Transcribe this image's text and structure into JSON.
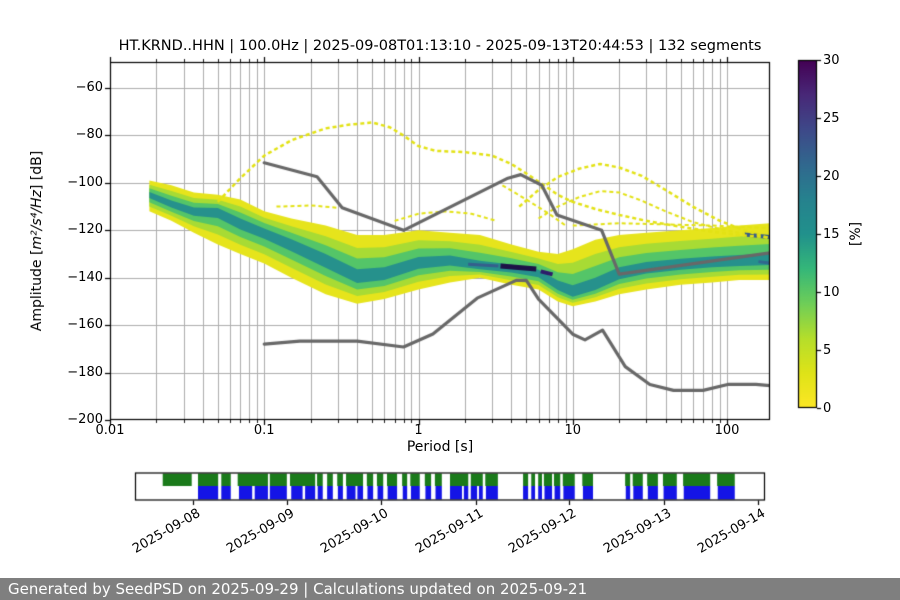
{
  "meta": {
    "station": "HT.KRND..HHN",
    "sampling_rate": "100.0Hz",
    "time_range": "2025-09-08T01:13:10 - 2025-09-13T20:44:53",
    "segments": "132 segments"
  },
  "ylabel": {
    "prefix": "Amplitude [",
    "math": "m²/s⁴/Hz",
    "suffix": "] [dB]"
  },
  "footer": {
    "text": "Generated by SeedPSD on 2025-09-29 | Calculations updated on 2025-09-21"
  },
  "chart_data": {
    "type": "heatmap",
    "title": "HT.KRND..HHN | 100.0Hz | 2025-09-08T01:13:10 - 2025-09-13T20:44:53 | 132 segments",
    "xlabel": "Period [s]",
    "ylabel": "Amplitude [m2/s4/Hz] [dB]",
    "xscale": "log",
    "xlim": [
      0.01,
      190
    ],
    "ylim": [
      -200,
      -49
    ],
    "grid": true,
    "grid_color": "#adadad",
    "xticks": [
      0.01,
      0.1,
      1,
      10,
      100
    ],
    "xtick_labels": [
      "0.01",
      "0.1",
      "1",
      "10",
      "100"
    ],
    "yticks": [
      -200,
      -180,
      -160,
      -140,
      -120,
      -100,
      -80,
      -60
    ],
    "ytick_labels": [
      "−200",
      "−180",
      "−160",
      "−140",
      "−120",
      "−100",
      "−80",
      "−60"
    ],
    "colorbar": {
      "label": "[%]",
      "ticks": [
        0,
        5,
        10,
        15,
        20,
        25,
        30
      ],
      "tick_labels": [
        "0",
        "5",
        "10",
        "15",
        "20",
        "25",
        "30"
      ],
      "cmap": "viridis_r",
      "stops_bottom_to_top": [
        "#fde725",
        "#dfe318",
        "#b5de2b",
        "#6ece58",
        "#35b779",
        "#21918c",
        "#26828e",
        "#31688e",
        "#3e4989",
        "#482878",
        "#440154"
      ]
    },
    "noise_models": {
      "color": "#686868",
      "nhnm": [
        [
          0.1,
          -91.5
        ],
        [
          0.22,
          -97.4
        ],
        [
          0.32,
          -110.5
        ],
        [
          0.8,
          -120.0
        ],
        [
          3.8,
          -98.0
        ],
        [
          4.6,
          -96.5
        ],
        [
          6.3,
          -101.0
        ],
        [
          7.9,
          -113.5
        ],
        [
          15.4,
          -120.0
        ],
        [
          20.0,
          -138.5
        ],
        [
          190,
          -129.5
        ]
      ],
      "nlnm": [
        [
          0.1,
          -168.0
        ],
        [
          0.17,
          -166.7
        ],
        [
          0.4,
          -166.7
        ],
        [
          0.8,
          -169.2
        ],
        [
          1.24,
          -163.7
        ],
        [
          2.4,
          -148.6
        ],
        [
          4.3,
          -141.1
        ],
        [
          5.0,
          -141.1
        ],
        [
          6.0,
          -149.0
        ],
        [
          10.0,
          -163.8
        ],
        [
          12.0,
          -166.2
        ],
        [
          15.6,
          -162.1
        ],
        [
          21.9,
          -177.5
        ],
        [
          31.6,
          -185.0
        ],
        [
          45.0,
          -187.5
        ],
        [
          70.0,
          -187.5
        ],
        [
          101.0,
          -185.0
        ],
        [
          154.0,
          -185.0
        ],
        [
          190,
          -185.5
        ]
      ]
    },
    "psd_band": {
      "layer_colors": [
        "#e6e41c",
        "#a8db34",
        "#54c568",
        "#26918c"
      ],
      "layer_shrink": [
        1.0,
        0.7,
        0.45,
        0.2
      ],
      "periods": [
        0.018,
        0.025,
        0.035,
        0.05,
        0.07,
        0.1,
        0.15,
        0.25,
        0.4,
        0.6,
        1.0,
        1.6,
        2.5,
        4,
        6,
        8,
        10,
        14,
        20,
        30,
        50,
        80,
        120,
        190
      ],
      "top": [
        -99,
        -101,
        -104,
        -105,
        -107,
        -112,
        -115,
        -118,
        -122,
        -122,
        -120,
        -121,
        -122,
        -126,
        -129,
        -130,
        -128,
        -124,
        -122,
        -121,
        -120,
        -119,
        -118,
        -117
      ],
      "bottom": [
        -112,
        -116,
        -121,
        -126,
        -130,
        -134,
        -140,
        -147,
        -151,
        -149,
        -145,
        -142,
        -140,
        -143,
        -145,
        -150,
        -152,
        -150,
        -147,
        -145,
        -143,
        -142,
        -141,
        -141
      ],
      "core": [
        -105,
        -109,
        -112,
        -112,
        -117,
        -121,
        -126,
        -133,
        -140,
        -139,
        -134,
        -133,
        -135.5,
        -136.5,
        -138.5,
        -144,
        -147,
        -144,
        -139,
        -136.5,
        -135,
        -134,
        -133.5,
        -133
      ]
    },
    "dark_segments": [
      {
        "color": "#355f8d",
        "width": 3,
        "points": [
          [
            2.1,
            -134.3
          ],
          [
            3.3,
            -135
          ]
        ]
      },
      {
        "color": "#1d1147",
        "width": 5,
        "points": [
          [
            3.4,
            -135
          ],
          [
            5.8,
            -136.3
          ]
        ]
      },
      {
        "color": "#2d1c6b",
        "width": 4,
        "points": [
          [
            6.2,
            -137.3
          ],
          [
            7.4,
            -138.6
          ]
        ]
      },
      {
        "color": "#365c8d",
        "width": 4,
        "points": [
          [
            130,
            -121.8
          ],
          [
            188,
            -122.8
          ]
        ]
      },
      {
        "color": "#31688e",
        "width": 3,
        "points": [
          [
            160,
            -133.2
          ],
          [
            188,
            -133.8
          ]
        ]
      }
    ],
    "outlier_lines": [
      {
        "color": "#e3e214",
        "width": 2.5,
        "points": [
          [
            0.05,
            -108
          ],
          [
            0.07,
            -98
          ],
          [
            0.1,
            -88.5
          ],
          [
            0.15,
            -82
          ],
          [
            0.25,
            -77
          ],
          [
            0.35,
            -75.5
          ],
          [
            0.5,
            -74.5
          ],
          [
            0.65,
            -76.5
          ],
          [
            0.8,
            -80
          ],
          [
            1.0,
            -84.5
          ],
          [
            1.3,
            -86.5
          ],
          [
            2.0,
            -87
          ],
          [
            3.0,
            -88.5
          ],
          [
            4.0,
            -92
          ],
          [
            5.0,
            -96
          ],
          [
            6.5,
            -101
          ],
          [
            8.0,
            -105
          ],
          [
            10,
            -108
          ],
          [
            14,
            -111
          ],
          [
            20,
            -113.5
          ],
          [
            30,
            -116
          ],
          [
            50,
            -118.5
          ],
          [
            80,
            -120.5
          ],
          [
            120,
            -122
          ],
          [
            190,
            -123
          ]
        ]
      },
      {
        "color": "#e3e214",
        "width": 2.5,
        "points": [
          [
            4.5,
            -110
          ],
          [
            6,
            -103
          ],
          [
            8,
            -97.5
          ],
          [
            11,
            -94
          ],
          [
            15,
            -92
          ],
          [
            20,
            -93.5
          ],
          [
            28,
            -97
          ],
          [
            40,
            -103
          ],
          [
            60,
            -110
          ],
          [
            90,
            -116
          ],
          [
            130,
            -120
          ],
          [
            190,
            -123.5
          ]
        ]
      },
      {
        "color": "#e3e214",
        "width": 2,
        "points": [
          [
            6,
            -115
          ],
          [
            8,
            -110
          ],
          [
            11,
            -106
          ],
          [
            15,
            -103.5
          ],
          [
            20,
            -104
          ],
          [
            28,
            -107.5
          ],
          [
            40,
            -112
          ],
          [
            60,
            -116.5
          ],
          [
            90,
            -119.5
          ],
          [
            130,
            -121.5
          ]
        ]
      },
      {
        "color": "#e3e214",
        "width": 2,
        "points": [
          [
            0.7,
            -116
          ],
          [
            1.0,
            -113
          ],
          [
            1.5,
            -112
          ],
          [
            2.2,
            -113
          ],
          [
            3.2,
            -116
          ]
        ]
      },
      {
        "color": "#e3e214",
        "width": 2,
        "points": [
          [
            0.12,
            -110
          ],
          [
            0.2,
            -109.5
          ],
          [
            0.3,
            -110.5
          ]
        ]
      },
      {
        "color": "#e3e214",
        "width": 2,
        "points": [
          [
            3.5,
            -101
          ],
          [
            5,
            -107
          ],
          [
            7,
            -113
          ],
          [
            9,
            -118
          ]
        ]
      },
      {
        "color": "#e3e214",
        "width": 2,
        "points": [
          [
            10,
            -118
          ],
          [
            20,
            -117
          ],
          [
            40,
            -117.5
          ],
          [
            80,
            -118
          ],
          [
            120,
            -118.5
          ],
          [
            190,
            -119
          ]
        ]
      }
    ]
  },
  "timeline": {
    "dates": [
      "2025-09-08",
      "2025-09-09",
      "2025-09-10",
      "2025-09-11",
      "2025-09-12",
      "2025-09-13",
      "2025-09-14"
    ],
    "date_fracs": [
      0.092,
      0.241,
      0.39,
      0.541,
      0.689,
      0.84,
      0.989
    ],
    "green_color": "#1a7a1a",
    "blue_color": "#1414e6",
    "green_segments": [
      [
        0.044,
        0.09
      ],
      [
        0.1,
        0.132
      ],
      [
        0.137,
        0.152
      ],
      [
        0.163,
        0.211
      ],
      [
        0.214,
        0.241
      ],
      [
        0.246,
        0.286
      ],
      [
        0.289,
        0.298
      ],
      [
        0.305,
        0.314
      ],
      [
        0.321,
        0.33
      ],
      [
        0.335,
        0.362
      ],
      [
        0.368,
        0.378
      ],
      [
        0.384,
        0.394
      ],
      [
        0.4,
        0.416
      ],
      [
        0.424,
        0.432
      ],
      [
        0.437,
        0.452
      ],
      [
        0.46,
        0.47
      ],
      [
        0.476,
        0.487
      ],
      [
        0.5,
        0.529
      ],
      [
        0.533,
        0.552
      ],
      [
        0.556,
        0.576
      ],
      [
        0.616,
        0.624
      ],
      [
        0.629,
        0.635
      ],
      [
        0.64,
        0.646
      ],
      [
        0.649,
        0.662
      ],
      [
        0.665,
        0.675
      ],
      [
        0.679,
        0.698
      ],
      [
        0.71,
        0.727
      ],
      [
        0.778,
        0.786
      ],
      [
        0.79,
        0.806
      ],
      [
        0.813,
        0.83
      ],
      [
        0.838,
        0.86
      ],
      [
        0.87,
        0.913
      ],
      [
        0.924,
        0.952
      ]
    ],
    "blue_segments": [
      [
        0.1,
        0.132
      ],
      [
        0.137,
        0.152
      ],
      [
        0.165,
        0.186
      ],
      [
        0.19,
        0.211
      ],
      [
        0.214,
        0.241
      ],
      [
        0.248,
        0.266
      ],
      [
        0.27,
        0.286
      ],
      [
        0.29,
        0.298
      ],
      [
        0.305,
        0.314
      ],
      [
        0.322,
        0.33
      ],
      [
        0.336,
        0.35
      ],
      [
        0.353,
        0.362
      ],
      [
        0.369,
        0.378
      ],
      [
        0.385,
        0.394
      ],
      [
        0.401,
        0.416
      ],
      [
        0.425,
        0.432
      ],
      [
        0.438,
        0.452
      ],
      [
        0.461,
        0.47
      ],
      [
        0.477,
        0.487
      ],
      [
        0.5,
        0.519
      ],
      [
        0.522,
        0.529
      ],
      [
        0.533,
        0.543
      ],
      [
        0.546,
        0.552
      ],
      [
        0.557,
        0.576
      ],
      [
        0.616,
        0.624
      ],
      [
        0.629,
        0.635
      ],
      [
        0.64,
        0.646
      ],
      [
        0.65,
        0.662
      ],
      [
        0.666,
        0.675
      ],
      [
        0.68,
        0.698
      ],
      [
        0.711,
        0.727
      ],
      [
        0.779,
        0.786
      ],
      [
        0.791,
        0.806
      ],
      [
        0.814,
        0.83
      ],
      [
        0.839,
        0.86
      ],
      [
        0.871,
        0.913
      ],
      [
        0.925,
        0.952
      ]
    ]
  }
}
